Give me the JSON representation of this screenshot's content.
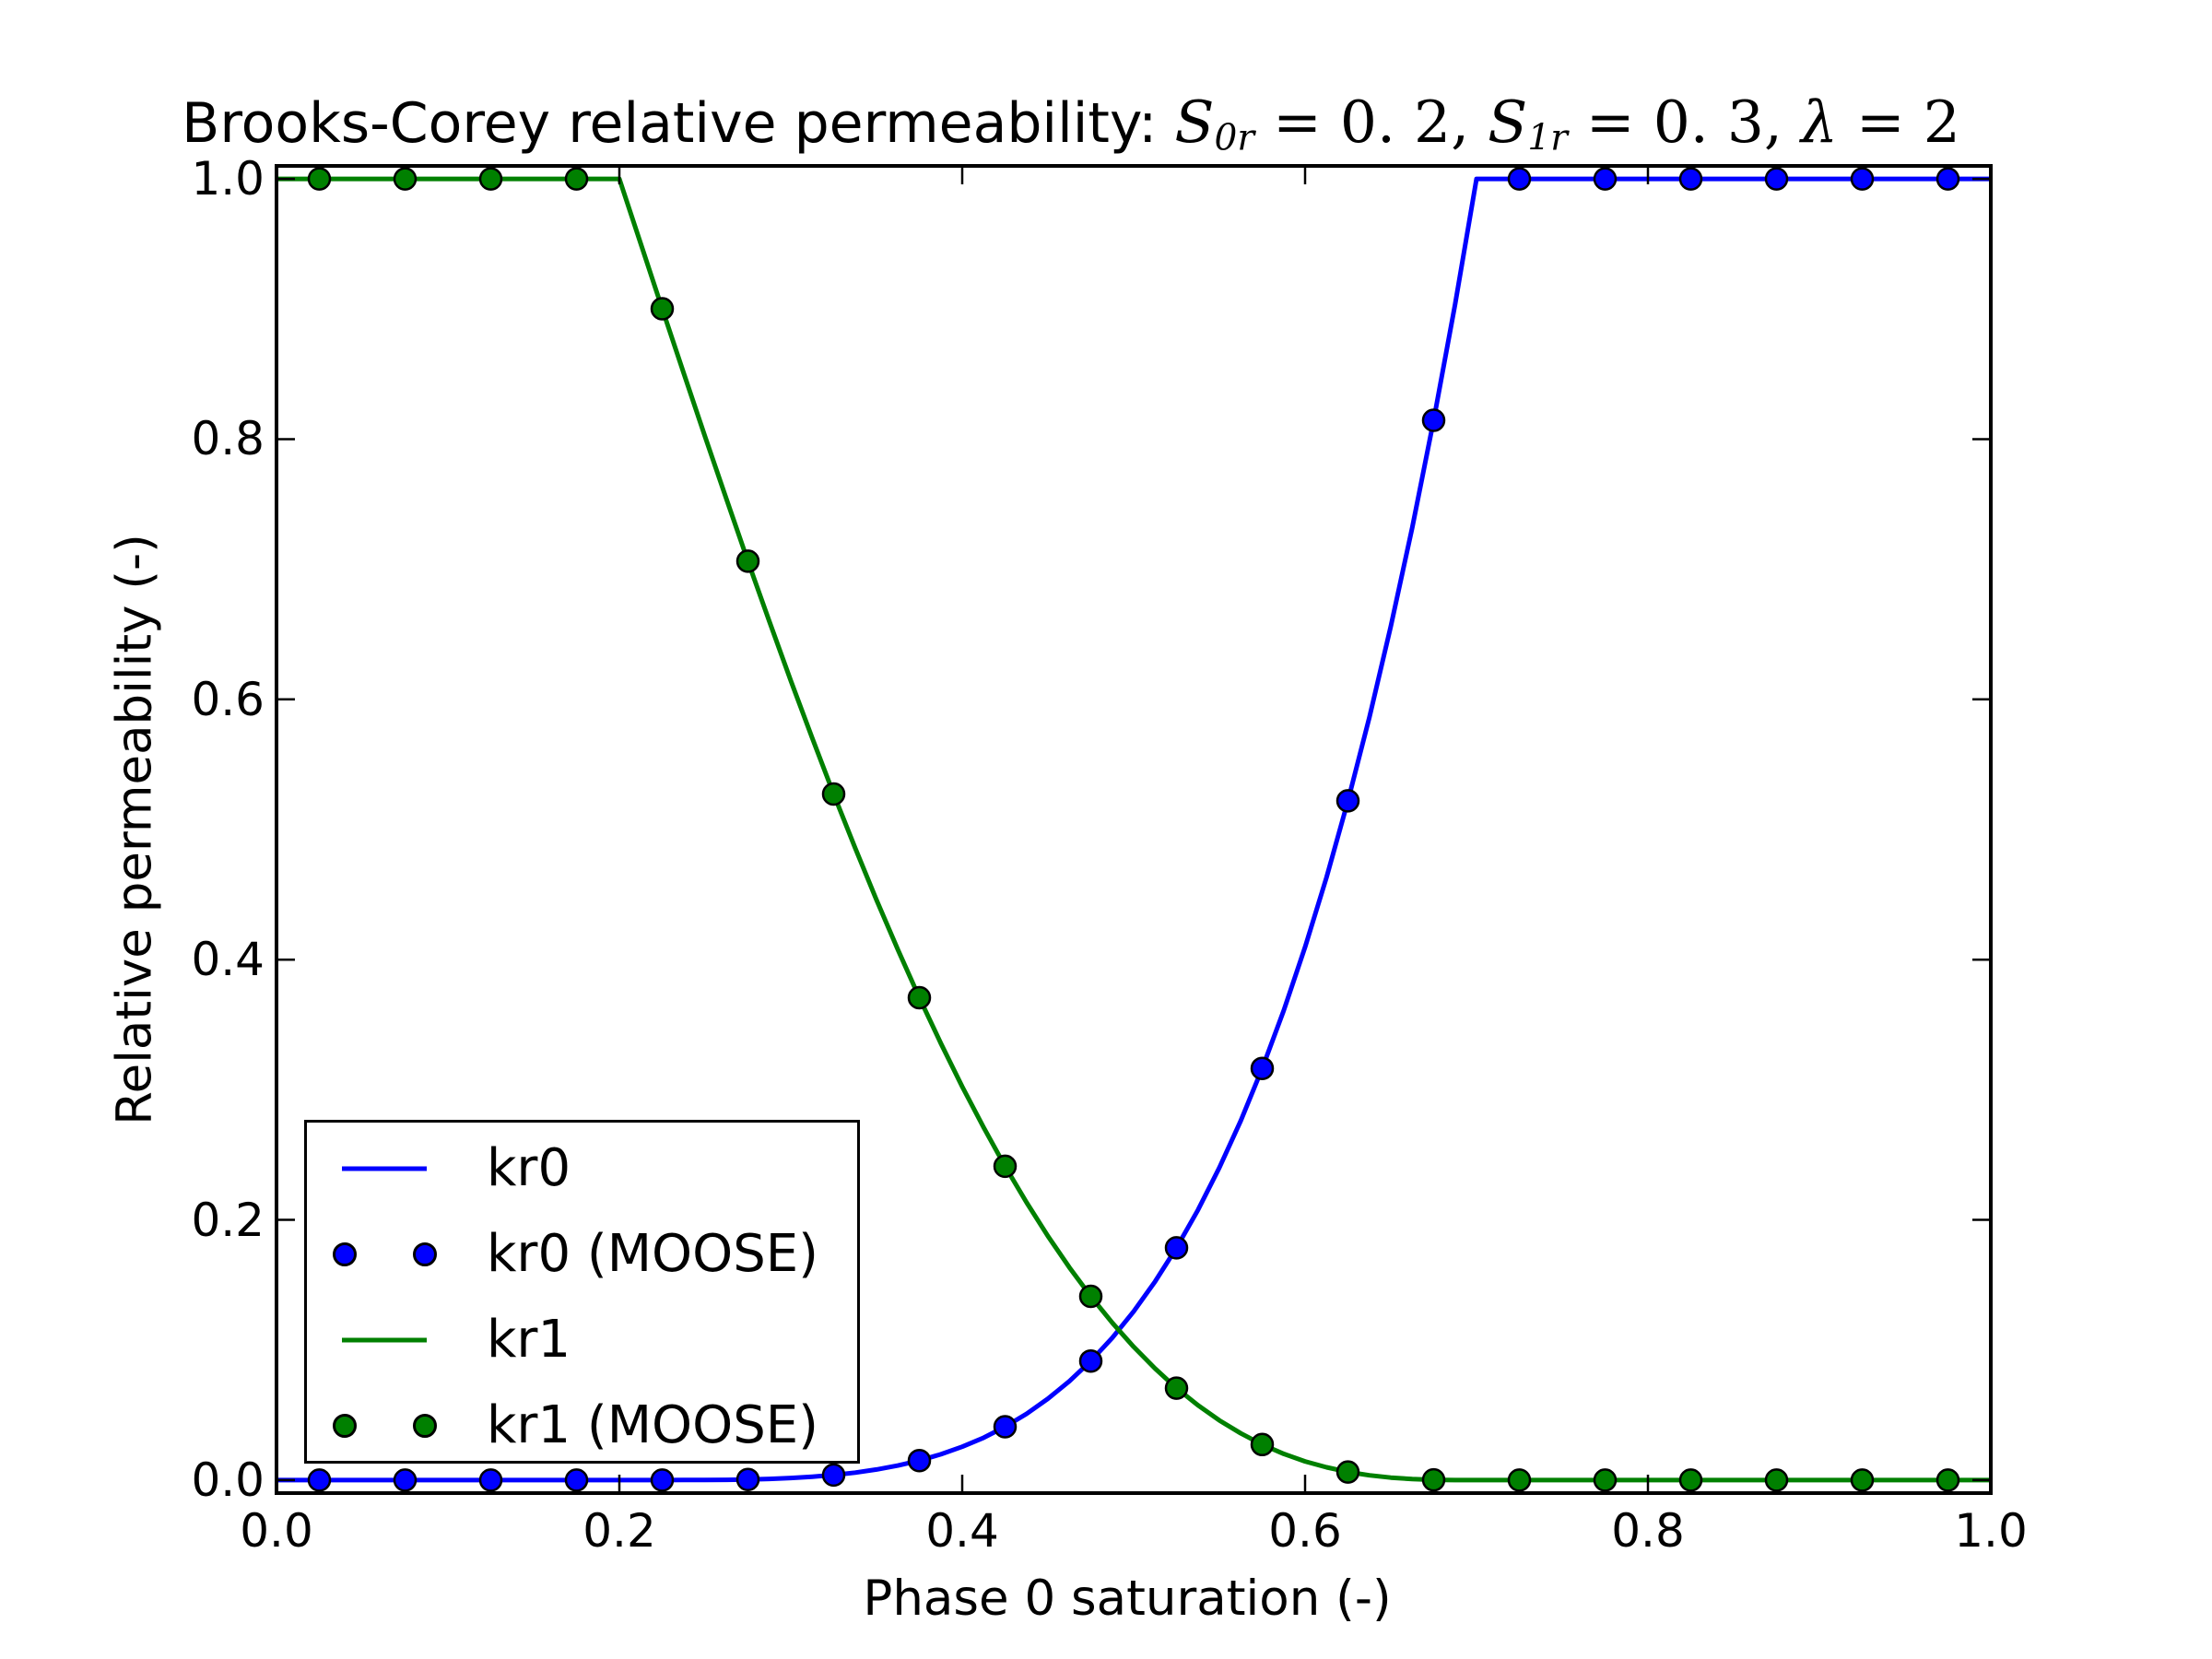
{
  "figure": {
    "title": {
      "prefix": "Brooks-Corey relative permeability: ",
      "math": [
        {
          "base": "S",
          "sub": "0r"
        },
        {
          "text": " = 0. 2, "
        },
        {
          "base": "S",
          "sub": "1r"
        },
        {
          "text": " = 0. 3, "
        },
        {
          "base": "λ"
        },
        {
          "text": " = 2"
        }
      ]
    },
    "xlabel": "Phase 0 saturation (-)",
    "ylabel": "Relative permeability (-)",
    "background": "#ffffff",
    "axes_color": "#000000"
  },
  "colors": {
    "kr0": "#0000ff",
    "kr1": "#008000",
    "marker_edge": "#000000"
  },
  "legend": {
    "entries": [
      {
        "label": "kr0",
        "type": "line",
        "color": "#0000ff"
      },
      {
        "label": "kr0 (MOOSE)",
        "type": "scatter",
        "color": "#0000ff"
      },
      {
        "label": "kr1",
        "type": "line",
        "color": "#008000"
      },
      {
        "label": "kr1 (MOOSE)",
        "type": "scatter",
        "color": "#008000"
      }
    ]
  },
  "chart_data": {
    "type": "line",
    "title": "Brooks-Corey relative permeability: S0r = 0.2, S1r = 0.3, λ = 2",
    "xlabel": "Phase 0 saturation (-)",
    "ylabel": "Relative permeability (-)",
    "xlim": [
      0,
      1
    ],
    "ylim": [
      -0.01,
      1.01
    ],
    "x_ticks": [
      "0.0",
      "0.2",
      "0.4",
      "0.6",
      "0.8",
      "1.0"
    ],
    "y_ticks": [
      "0.0",
      "0.2",
      "0.4",
      "0.6",
      "0.8",
      "1.0"
    ],
    "x_tick_values": [
      0,
      0.2,
      0.4,
      0.6,
      0.8,
      1.0
    ],
    "y_tick_values": [
      0,
      0.2,
      0.4,
      0.6,
      0.8,
      1.0
    ],
    "grid": false,
    "legend_position": "lower left",
    "model_params": {
      "S0r": 0.2,
      "S1r": 0.3,
      "lambda": 2
    },
    "series": [
      {
        "name": "kr0",
        "type": "line",
        "color": "#0000ff",
        "x": [
          0,
          0.0125,
          0.025,
          0.0375,
          0.05,
          0.0625,
          0.075,
          0.0875,
          0.1,
          0.1125,
          0.125,
          0.1375,
          0.15,
          0.1625,
          0.175,
          0.1875,
          0.2,
          0.2125,
          0.225,
          0.2375,
          0.25,
          0.2625,
          0.275,
          0.2875,
          0.3,
          0.3125,
          0.325,
          0.3375,
          0.35,
          0.3625,
          0.375,
          0.3875,
          0.4,
          0.4125,
          0.425,
          0.4375,
          0.45,
          0.4625,
          0.475,
          0.4875,
          0.5,
          0.5125,
          0.525,
          0.5375,
          0.55,
          0.5625,
          0.575,
          0.5875,
          0.6,
          0.6125,
          0.625,
          0.6375,
          0.65,
          0.6625,
          0.675,
          0.6875,
          0.7,
          0.7125,
          0.725,
          0.7375,
          0.75,
          0.7625,
          0.775,
          0.7875,
          0.8,
          0.8125,
          0.825,
          0.8375,
          0.85,
          0.8625,
          0.875,
          0.8875,
          0.9,
          0.9125,
          0.925,
          0.9375,
          0.95,
          0.9625,
          0.975,
          0.9875,
          1
        ],
        "y": [
          0,
          0,
          0,
          0,
          0,
          0,
          0,
          0,
          0,
          0,
          0,
          0,
          0,
          0,
          0,
          0,
          0,
          0,
          1e-05,
          3e-05,
          0.0001,
          0.0002,
          0.0005,
          0.0009,
          0.0016,
          0.0026,
          0.0039,
          0.0057,
          0.0081,
          0.0112,
          0.015,
          0.0198,
          0.0256,
          0.0326,
          0.041,
          0.0509,
          0.0625,
          0.076,
          0.0915,
          0.1093,
          0.1296,
          0.1526,
          0.1785,
          0.2076,
          0.2401,
          0.2763,
          0.3164,
          0.3608,
          0.4096,
          0.4633,
          0.522,
          0.5862,
          0.6561,
          0.7321,
          0.8145,
          0.9037,
          1,
          1,
          1,
          1,
          1,
          1,
          1,
          1,
          1,
          1,
          1,
          1,
          1,
          1,
          1,
          1,
          1,
          1,
          1,
          1,
          1,
          1,
          1,
          1,
          1
        ]
      },
      {
        "name": "kr0 (MOOSE)",
        "type": "scatter",
        "color": "#0000ff",
        "x": [
          0.025,
          0.075,
          0.125,
          0.175,
          0.225,
          0.275,
          0.325,
          0.375,
          0.425,
          0.475,
          0.525,
          0.575,
          0.625,
          0.675,
          0.725,
          0.775,
          0.825,
          0.875,
          0.925,
          0.975
        ],
        "y": [
          0,
          0,
          0,
          0,
          6e-06,
          0.000506,
          0.0039,
          0.015,
          0.041,
          0.0915,
          0.1785,
          0.3164,
          0.522,
          0.8145,
          1,
          1,
          1,
          1,
          1,
          1
        ]
      },
      {
        "name": "kr1",
        "type": "line",
        "color": "#008000",
        "x": [
          0,
          0.0125,
          0.025,
          0.0375,
          0.05,
          0.0625,
          0.075,
          0.0875,
          0.1,
          0.1125,
          0.125,
          0.1375,
          0.15,
          0.1625,
          0.175,
          0.1875,
          0.2,
          0.2125,
          0.225,
          0.2375,
          0.25,
          0.2625,
          0.275,
          0.2875,
          0.3,
          0.3125,
          0.325,
          0.3375,
          0.35,
          0.3625,
          0.375,
          0.3875,
          0.4,
          0.4125,
          0.425,
          0.4375,
          0.45,
          0.4625,
          0.475,
          0.4875,
          0.5,
          0.5125,
          0.525,
          0.5375,
          0.55,
          0.5625,
          0.575,
          0.5875,
          0.6,
          0.6125,
          0.625,
          0.6375,
          0.65,
          0.6625,
          0.675,
          0.6875,
          0.7,
          0.7125,
          0.725,
          0.7375,
          0.75,
          0.7625,
          0.775,
          0.7875,
          0.8,
          0.8125,
          0.825,
          0.8375,
          0.85,
          0.8625,
          0.875,
          0.8875,
          0.9,
          0.9125,
          0.925,
          0.9375,
          0.95,
          0.9625,
          0.975,
          0.9875,
          1
        ],
        "y": [
          1,
          1,
          1,
          1,
          1,
          1,
          1,
          1,
          1,
          1,
          1,
          1,
          1,
          1,
          1,
          1,
          1,
          0.95,
          0.9002,
          0.8508,
          0.8019,
          0.7537,
          0.7062,
          0.6598,
          0.6144,
          0.5702,
          0.5273,
          0.4859,
          0.4459,
          0.4075,
          0.3707,
          0.3357,
          0.3024,
          0.2709,
          0.2412,
          0.2134,
          0.1875,
          0.1634,
          0.1412,
          0.1209,
          0.1024,
          0.0857,
          0.0707,
          0.0575,
          0.0459,
          0.0359,
          0.0273,
          0.0202,
          0.0144,
          0.0098,
          0.0062,
          0.0037,
          0.0019,
          0.0008,
          0.0002,
          0,
          0,
          0,
          0,
          0,
          0,
          0,
          0,
          0,
          0,
          0,
          0,
          0,
          0,
          0,
          0,
          0,
          0,
          0,
          0,
          0,
          0,
          0,
          0,
          0,
          0
        ]
      },
      {
        "name": "kr1 (MOOSE)",
        "type": "scatter",
        "color": "#008000",
        "x": [
          0.025,
          0.075,
          0.125,
          0.175,
          0.225,
          0.275,
          0.325,
          0.375,
          0.425,
          0.475,
          0.525,
          0.575,
          0.625,
          0.675,
          0.725,
          0.775,
          0.825,
          0.875,
          0.925,
          0.975
        ],
        "y": [
          1,
          1,
          1,
          1,
          0.9002,
          0.7062,
          0.5273,
          0.3707,
          0.2412,
          0.1412,
          0.0707,
          0.0273,
          0.0062,
          0.0002,
          0,
          0,
          0,
          0,
          0,
          0
        ]
      }
    ]
  }
}
